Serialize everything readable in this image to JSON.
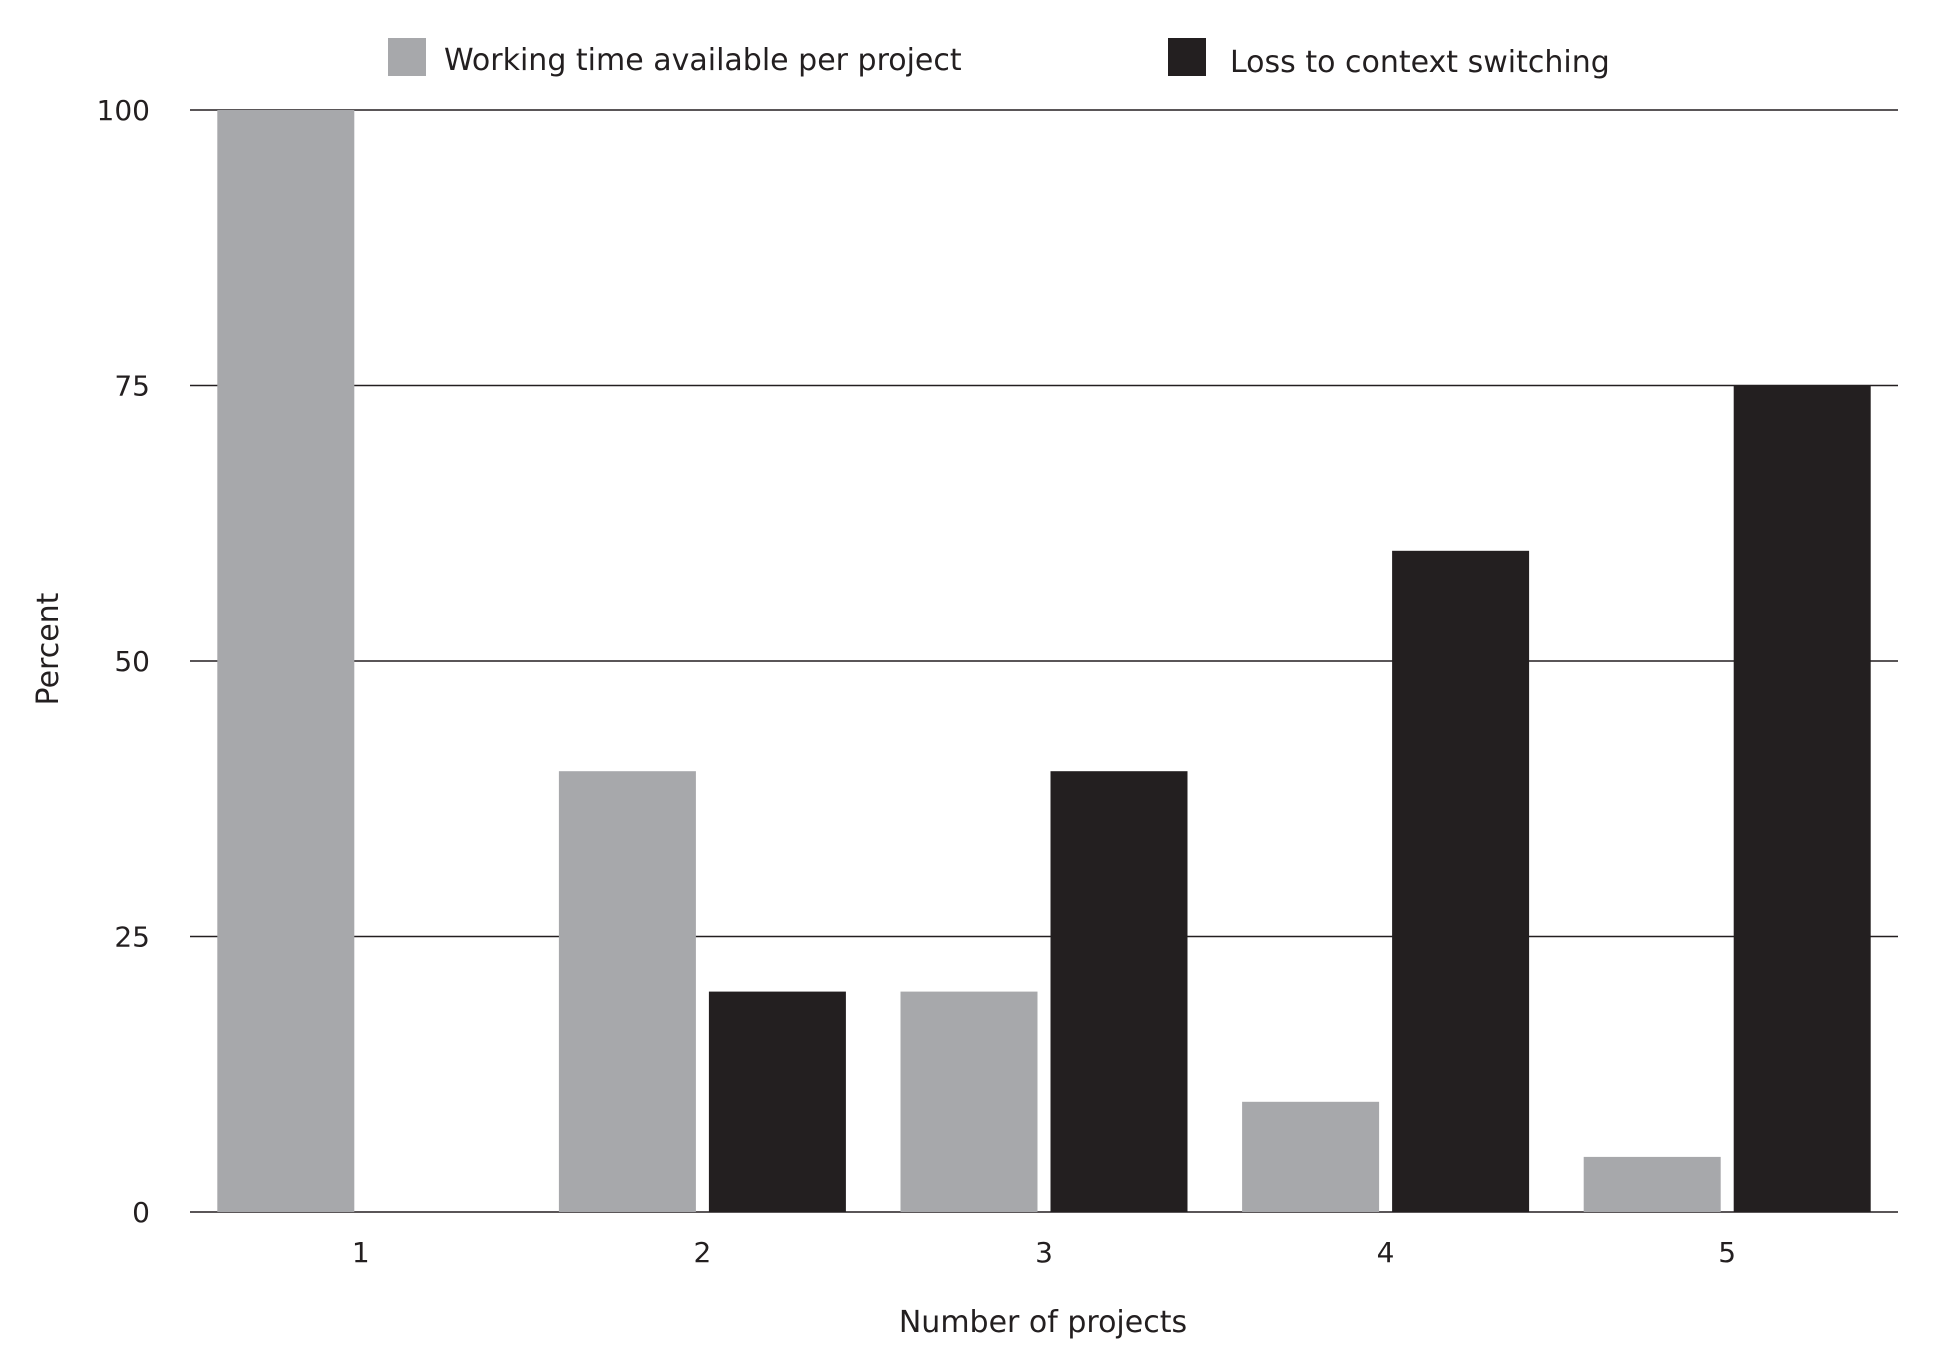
{
  "chart_data": {
    "type": "bar",
    "title": "",
    "xlabel": "Number of projects",
    "ylabel": "Percent",
    "categories": [
      "1",
      "2",
      "3",
      "4",
      "5"
    ],
    "ylim": [
      0,
      100
    ],
    "yticks": [
      "0",
      "25",
      "50",
      "75",
      "100"
    ],
    "grid": true,
    "legend_position": "top",
    "series": [
      {
        "name": "Working time available per project",
        "color": "#a7a8ab",
        "values": [
          100,
          40,
          20,
          10,
          5
        ]
      },
      {
        "name": "Loss to context switching",
        "color": "#231f20",
        "values": [
          0,
          20,
          40,
          60,
          75
        ]
      }
    ]
  }
}
